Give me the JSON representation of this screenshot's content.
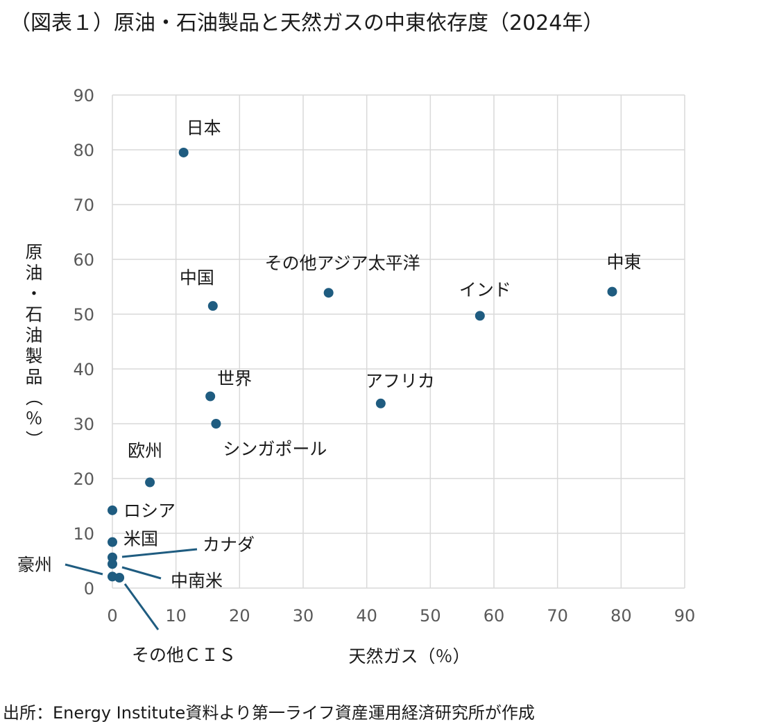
{
  "chart_data": {
    "type": "scatter",
    "title": "（図表１）原油・石油製品と天然ガスの中東依存度（2024年）",
    "xlabel": "天然ガス（％）",
    "ylabel": "原油・石油製品（％）",
    "xlim": [
      0,
      90
    ],
    "ylim": [
      0,
      90
    ],
    "xticks": [
      0,
      10,
      20,
      30,
      40,
      50,
      60,
      70,
      80,
      90
    ],
    "yticks": [
      0,
      10,
      20,
      30,
      40,
      50,
      60,
      70,
      80,
      90
    ],
    "grid": true,
    "marker_color": "#1f5c80",
    "points": [
      {
        "label": "日本",
        "x": 11.2,
        "y": 79.5
      },
      {
        "label": "中国",
        "x": 15.8,
        "y": 51.5
      },
      {
        "label": "その他アジア太平洋",
        "x": 34.0,
        "y": 53.9
      },
      {
        "label": "インド",
        "x": 57.8,
        "y": 49.7
      },
      {
        "label": "中東",
        "x": 78.6,
        "y": 54.1
      },
      {
        "label": "世界",
        "x": 15.4,
        "y": 35.0
      },
      {
        "label": "シンガポール",
        "x": 16.3,
        "y": 30.0
      },
      {
        "label": "アフリカ",
        "x": 42.2,
        "y": 33.7
      },
      {
        "label": "欧州",
        "x": 5.9,
        "y": 19.3
      },
      {
        "label": "ロシア",
        "x": 0.0,
        "y": 14.2
      },
      {
        "label": "米国",
        "x": 0.0,
        "y": 8.4
      },
      {
        "label": "カナダ",
        "x": 0.0,
        "y": 5.6
      },
      {
        "label": "豪州",
        "x": 0.0,
        "y": 4.4
      },
      {
        "label": "中南米",
        "x": 0.0,
        "y": 2.1
      },
      {
        "label": "その他ＣＩＳ",
        "x": 1.1,
        "y": 1.9
      }
    ]
  },
  "source": "出所：Energy Institute資料より第一ライフ資産運用経済研究所が作成"
}
